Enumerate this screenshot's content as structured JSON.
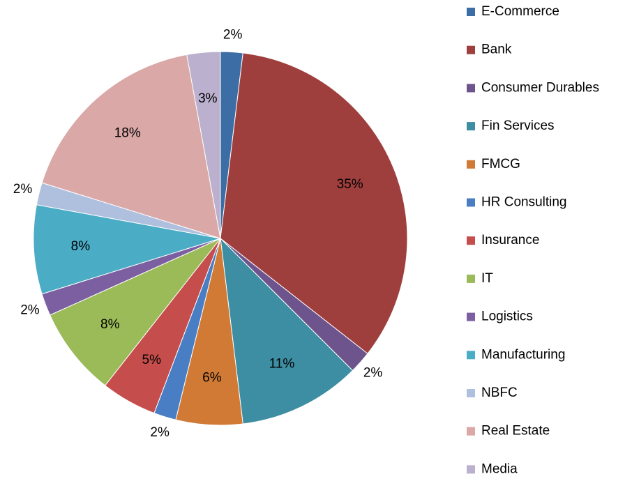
{
  "chart_data": {
    "type": "pie",
    "categories": [
      "E-Commerce",
      "Bank",
      "Consumer Durables",
      "Fin Services",
      "FMCG",
      "HR Consulting",
      "Insurance",
      "IT",
      "Logistics",
      "Manufacturing",
      "NBFC",
      "Real Estate",
      "Media"
    ],
    "values": [
      2,
      35,
      2,
      11,
      6,
      2,
      5,
      8,
      2,
      8,
      2,
      18,
      3
    ],
    "value_labels": [
      "2%",
      "35%",
      "2%",
      "11%",
      "6%",
      "2%",
      "5%",
      "8%",
      "2%",
      "8%",
      "2%",
      "18%",
      "3%"
    ],
    "colors": [
      "#3c6ea5",
      "#9e3f3d",
      "#6e548d",
      "#3d8ea3",
      "#d07a35",
      "#4a7ec4",
      "#c54e4c",
      "#9bbb59",
      "#7b5fa0",
      "#4bacc6",
      "#afc0de",
      "#d9a8a7",
      "#bbb0ce"
    ],
    "legend": "right"
  }
}
